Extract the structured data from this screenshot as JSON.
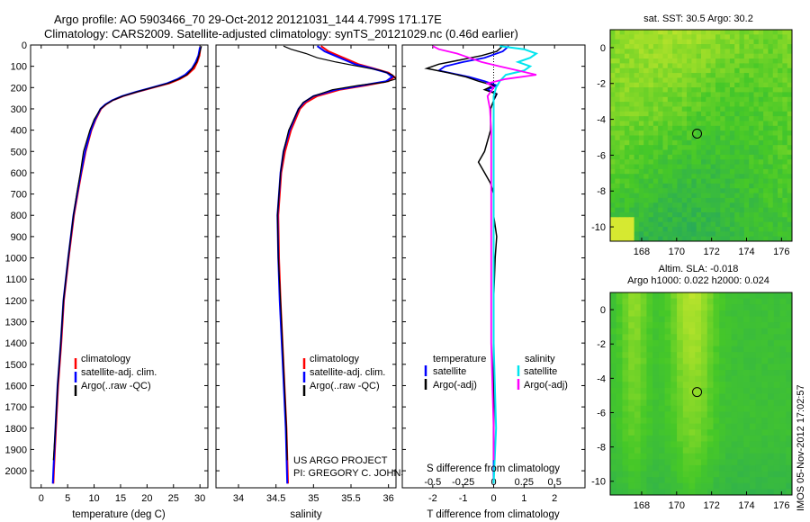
{
  "title": {
    "line1": "Argo profile: AO 5903466_70 29-Oct-2012 20121031_144 4.799S 171.17E",
    "line2": "Climatology: CARS2009. Satellite-adjusted climatology: synTS_20121029.nc (0.46d earlier)"
  },
  "colors": {
    "clim": "#ff0000",
    "sat": "#0000ff",
    "argo": "#000000",
    "sal_sat": "#00e5ee",
    "sal_argo": "#ff00ff"
  },
  "depth_ticks": [
    "0",
    "100",
    "200",
    "300",
    "400",
    "500",
    "600",
    "700",
    "800",
    "900",
    "1000",
    "1100",
    "1200",
    "1300",
    "1400",
    "1500",
    "1600",
    "1700",
    "1800",
    "1900",
    "2000"
  ],
  "chart_data": [
    {
      "type": "line",
      "name": "temperature",
      "xlabel": "temperature (deg C)",
      "ylabel": "",
      "xlim": [
        -2,
        31.5
      ],
      "ylim": [
        2080,
        0
      ],
      "x_ticks": [
        "0",
        "5",
        "10",
        "15",
        "20",
        "25",
        "30"
      ],
      "legend": [
        "climatology",
        "satellite-adj. clim.",
        "Argo(..raw -QC)"
      ],
      "series": [
        {
          "name": "climatology",
          "depth": [
            10,
            50,
            80,
            110,
            140,
            160,
            180,
            200,
            220,
            240,
            260,
            280,
            300,
            350,
            400,
            500,
            600,
            700,
            800,
            1000,
            1200,
            1400,
            1600,
            1800,
            2000,
            2060
          ],
          "values": [
            30.1,
            29.9,
            29.5,
            28.9,
            27.6,
            26.2,
            24.2,
            21.2,
            18.2,
            15.5,
            13.5,
            12.2,
            11.3,
            10.3,
            9.5,
            8.4,
            7.6,
            6.9,
            6.2,
            5.2,
            4.3,
            3.8,
            3.2,
            2.8,
            2.4,
            2.3
          ]
        },
        {
          "name": "satellite-adj. clim.",
          "depth": [
            10,
            50,
            80,
            110,
            140,
            160,
            180,
            200,
            220,
            240,
            260,
            280,
            300,
            350,
            400,
            500,
            600,
            700,
            800,
            1000,
            1200,
            1400,
            1600,
            1800,
            2000,
            2060
          ],
          "values": [
            30.0,
            29.7,
            29.2,
            28.5,
            27.2,
            25.8,
            23.8,
            20.9,
            18.0,
            15.3,
            13.4,
            12.1,
            11.2,
            10.2,
            9.4,
            8.3,
            7.5,
            6.8,
            6.1,
            5.1,
            4.2,
            3.7,
            3.1,
            2.7,
            2.3,
            2.2
          ]
        },
        {
          "name": "Argo(..raw -QC)",
          "depth": [
            5,
            50,
            80,
            110,
            140,
            160,
            180,
            200,
            220,
            240,
            260,
            280,
            300,
            350,
            400,
            500,
            600,
            700,
            800,
            1000,
            1200,
            1400,
            1600,
            1800,
            1950
          ],
          "values": [
            30.3,
            29.8,
            29.4,
            28.6,
            27.5,
            26.0,
            24.0,
            21.0,
            18.1,
            15.4,
            13.5,
            12.2,
            11.2,
            10.0,
            9.2,
            8.0,
            7.4,
            6.7,
            6.1,
            5.1,
            4.2,
            3.7,
            3.1,
            2.7,
            2.3
          ]
        }
      ]
    },
    {
      "type": "line",
      "name": "salinity",
      "xlabel": "salinity",
      "ylabel": "",
      "xlim": [
        33.7,
        36.1
      ],
      "ylim": [
        2080,
        0
      ],
      "x_ticks": [
        "34",
        "34.5",
        "35",
        "35.5",
        "36"
      ],
      "legend": [
        "climatology",
        "satellite-adj. clim.",
        "Argo(..raw -QC)"
      ],
      "series": [
        {
          "name": "climatology",
          "depth": [
            5,
            30,
            60,
            90,
            110,
            130,
            150,
            170,
            190,
            210,
            240,
            270,
            300,
            400,
            500,
            600,
            800,
            1000,
            1200,
            1500,
            1800,
            2060
          ],
          "values": [
            35.1,
            35.2,
            35.4,
            35.6,
            35.8,
            36.0,
            36.08,
            36.0,
            35.7,
            35.35,
            35.05,
            34.9,
            34.82,
            34.7,
            34.62,
            34.57,
            34.53,
            34.54,
            34.56,
            34.6,
            34.64,
            34.66
          ]
        },
        {
          "name": "satellite-adj. clim.",
          "depth": [
            5,
            30,
            60,
            90,
            110,
            130,
            150,
            170,
            190,
            210,
            240,
            270,
            300,
            400,
            500,
            600,
            800,
            1000,
            1200,
            1500,
            1800,
            2060
          ],
          "values": [
            35.05,
            35.15,
            35.35,
            35.55,
            35.78,
            35.98,
            36.05,
            35.97,
            35.65,
            35.3,
            35.0,
            34.87,
            34.8,
            34.68,
            34.6,
            34.56,
            34.52,
            34.53,
            34.55,
            34.59,
            34.63,
            34.65
          ]
        },
        {
          "name": "Argo(..raw -QC)",
          "depth": [
            5,
            20,
            40,
            60,
            80,
            100,
            120,
            140,
            160,
            175,
            190,
            210,
            240,
            270,
            300,
            400,
            500,
            600,
            800,
            1000,
            1200,
            1500,
            1800,
            1950
          ],
          "values": [
            34.6,
            34.7,
            34.9,
            35.05,
            35.3,
            35.6,
            35.9,
            36.05,
            36.1,
            35.95,
            35.6,
            35.25,
            35.0,
            34.86,
            34.8,
            34.67,
            34.6,
            34.56,
            34.52,
            34.53,
            34.56,
            34.6,
            34.64,
            34.65
          ]
        }
      ]
    },
    {
      "type": "line",
      "name": "differences",
      "xlabel": "T difference from climatology",
      "ylabel": "",
      "xlim": [
        -3,
        3
      ],
      "ylim": [
        2080,
        0
      ],
      "x_ticks": [
        "-2",
        "-1",
        "0",
        "1",
        "2"
      ],
      "top_xlabel": "S difference from climatology",
      "top_x_ticks": [
        "-0.5",
        "-0.25",
        "0",
        "0.25",
        "0.5"
      ],
      "legend_headers": [
        "temperature",
        "salinity"
      ],
      "legend": [
        "satellite",
        "Argo(-adj)",
        "satellite",
        "Argo(-adj)"
      ],
      "series": [
        {
          "name": "T satellite",
          "depth": [
            5,
            30,
            60,
            80,
            100,
            120,
            150,
            170,
            190,
            210,
            230,
            260,
            300,
            400,
            600,
            800,
            1000,
            1400,
            1800,
            2060
          ],
          "values": [
            0.5,
            0.3,
            -0.3,
            -1.0,
            -1.6,
            -1.8,
            -0.8,
            -0.3,
            0.1,
            -0.2,
            0.1,
            0.0,
            0.0,
            0.0,
            0.0,
            0.0,
            0.0,
            0.0,
            0.0,
            0.0
          ]
        },
        {
          "name": "T Argo(-adj)",
          "depth": [
            5,
            30,
            50,
            70,
            90,
            110,
            130,
            150,
            170,
            190,
            210,
            230,
            260,
            300,
            400,
            500,
            550,
            600,
            650,
            700,
            800,
            900,
            1000,
            1200,
            1400,
            1600,
            1800,
            1950
          ],
          "values": [
            0.3,
            0.1,
            -0.4,
            -1.1,
            -1.8,
            -2.2,
            -1.5,
            -0.9,
            -0.5,
            0.0,
            -0.3,
            0.1,
            0.0,
            -0.1,
            -0.1,
            -0.3,
            -0.5,
            -0.3,
            -0.1,
            0.0,
            0.0,
            0.1,
            0.05,
            0.0,
            0.0,
            0.0,
            0.0,
            0.0
          ]
        },
        {
          "name": "S satellite",
          "depth": [
            5,
            20,
            40,
            60,
            80,
            100,
            120,
            140,
            170,
            200,
            240,
            300,
            400,
            600,
            800,
            1000,
            1400,
            1800,
            2060
          ],
          "values": [
            0.05,
            0.25,
            0.35,
            0.3,
            0.2,
            0.3,
            0.25,
            0.1,
            0.05,
            0.02,
            0.0,
            0.0,
            0.0,
            0.0,
            0.0,
            0.0,
            0.0,
            0.02,
            0.0
          ]
        },
        {
          "name": "S Argo(-adj)",
          "depth": [
            5,
            20,
            40,
            60,
            80,
            100,
            120,
            140,
            160,
            180,
            200,
            240,
            300,
            400,
            600,
            800,
            1000,
            1200,
            1400,
            1800,
            1950
          ],
          "values": [
            -0.5,
            -0.45,
            -0.3,
            -0.2,
            -0.1,
            0.05,
            0.2,
            0.35,
            0.1,
            -0.05,
            0.0,
            -0.05,
            -0.03,
            -0.02,
            -0.02,
            -0.02,
            -0.02,
            -0.02,
            -0.02,
            0.0,
            0.0
          ]
        }
      ]
    },
    {
      "type": "heatmap",
      "name": "sst_map",
      "title": "sat. SST: 30.5  Argo: 30.2",
      "x_ticks": [
        "168",
        "170",
        "172",
        "174",
        "176"
      ],
      "y_ticks": [
        "0",
        "-2",
        "-4",
        "-6",
        "-8",
        "-10"
      ],
      "xlim": [
        166.2,
        176.6
      ],
      "ylim": [
        -10.8,
        1.0
      ],
      "marker": {
        "lon": 171.17,
        "lat": -4.799
      }
    },
    {
      "type": "heatmap",
      "name": "sla_map",
      "title_line1": "Altim. SLA: -0.018",
      "title_line2": "Argo h1000: 0.022 h2000: 0.024",
      "x_ticks": [
        "168",
        "170",
        "172",
        "174",
        "176"
      ],
      "y_ticks": [
        "0",
        "-2",
        "-4",
        "-6",
        "-8",
        "-10"
      ],
      "xlim": [
        166.2,
        176.6
      ],
      "ylim": [
        -10.8,
        1.0
      ],
      "marker": {
        "lon": 171.17,
        "lat": -4.799
      }
    }
  ],
  "annotations": {
    "project_line1": "US ARGO PROJECT",
    "project_line2": "PI: GREGORY C. JOHNSON",
    "timestamp": "IMOS 05-Nov-2012 17:02:57"
  }
}
